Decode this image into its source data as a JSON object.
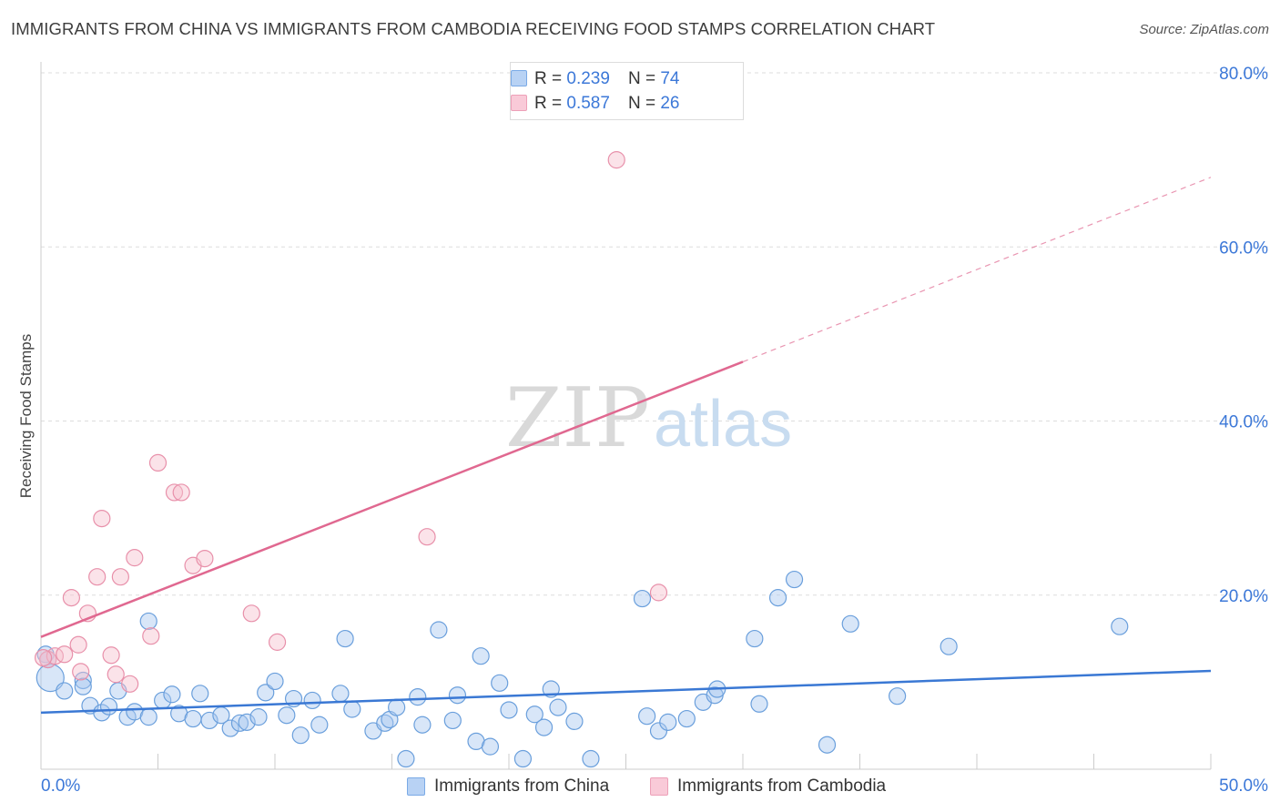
{
  "header": {
    "title": "IMMIGRANTS FROM CHINA VS IMMIGRANTS FROM CAMBODIA RECEIVING FOOD STAMPS CORRELATION CHART",
    "source": "Source: ZipAtlas.com"
  },
  "watermark": {
    "zip": "ZIP",
    "atlas": "atlas"
  },
  "legend_top": {
    "rows": [
      {
        "r_label": "R =",
        "r_value": "0.239",
        "n_label": "N =",
        "n_value": "74"
      },
      {
        "r_label": "R =",
        "r_value": "0.587",
        "n_label": "N =",
        "n_value": "26"
      }
    ]
  },
  "legend_bottom": {
    "items": [
      {
        "label": "Immigrants from China"
      },
      {
        "label": "Immigrants from Cambodia"
      }
    ]
  },
  "colors": {
    "china_fill": "#a8c8f0",
    "china_stroke": "#6a9fdc",
    "china_line": "#3a78d4",
    "cambodia_fill": "#f7c0cf",
    "cambodia_stroke": "#e890aa",
    "cambodia_line": "#e06890",
    "axis_label": "#3c78d8",
    "grid": "#dddddd"
  },
  "chart_data": {
    "type": "scatter",
    "title": "IMMIGRANTS FROM CHINA VS IMMIGRANTS FROM CAMBODIA RECEIVING FOOD STAMPS CORRELATION CHART",
    "xlabel": "",
    "ylabel": "Receiving Food Stamps",
    "xlim": [
      0,
      50
    ],
    "ylim": [
      0,
      80
    ],
    "x_tick_labels": [
      {
        "value": 0,
        "label": "0.0%"
      },
      {
        "value": 50,
        "label": "50.0%"
      }
    ],
    "y_tick_labels": [
      {
        "value": 20,
        "label": "20.0%"
      },
      {
        "value": 40,
        "label": "40.0%"
      },
      {
        "value": 60,
        "label": "60.0%"
      },
      {
        "value": 80,
        "label": "80.0%"
      }
    ],
    "grid": true,
    "legend_position": "top-center",
    "series": [
      {
        "name": "Immigrants from China",
        "r": 0.239,
        "n": 74,
        "trend": {
          "x": [
            0,
            50
          ],
          "y": [
            6.5,
            11.3
          ],
          "extrapolated": false
        },
        "points": [
          [
            0.4,
            10.5
          ],
          [
            1.0,
            9.0
          ],
          [
            1.8,
            10.2
          ],
          [
            1.8,
            9.5
          ],
          [
            2.1,
            7.3
          ],
          [
            2.6,
            6.5
          ],
          [
            2.9,
            7.2
          ],
          [
            3.3,
            9.0
          ],
          [
            3.7,
            6.0
          ],
          [
            4.0,
            6.6
          ],
          [
            4.6,
            6.0
          ],
          [
            4.6,
            17.0
          ],
          [
            5.2,
            7.9
          ],
          [
            5.6,
            8.6
          ],
          [
            5.9,
            6.4
          ],
          [
            6.5,
            5.8
          ],
          [
            6.8,
            8.7
          ],
          [
            7.2,
            5.6
          ],
          [
            7.7,
            6.2
          ],
          [
            8.1,
            4.7
          ],
          [
            8.5,
            5.3
          ],
          [
            8.8,
            5.4
          ],
          [
            9.3,
            6.0
          ],
          [
            9.6,
            8.8
          ],
          [
            10.0,
            10.1
          ],
          [
            10.5,
            6.2
          ],
          [
            10.8,
            8.1
          ],
          [
            11.1,
            3.9
          ],
          [
            11.6,
            7.9
          ],
          [
            11.9,
            5.1
          ],
          [
            12.8,
            8.7
          ],
          [
            13.0,
            15.0
          ],
          [
            13.3,
            6.9
          ],
          [
            14.2,
            4.4
          ],
          [
            14.7,
            5.3
          ],
          [
            14.9,
            5.7
          ],
          [
            15.2,
            7.1
          ],
          [
            15.6,
            1.2
          ],
          [
            16.1,
            8.3
          ],
          [
            16.3,
            5.1
          ],
          [
            17.0,
            16.0
          ],
          [
            17.6,
            5.6
          ],
          [
            17.8,
            8.5
          ],
          [
            18.6,
            3.2
          ],
          [
            18.8,
            13.0
          ],
          [
            19.2,
            2.6
          ],
          [
            19.6,
            9.9
          ],
          [
            20.0,
            6.8
          ],
          [
            20.6,
            1.2
          ],
          [
            21.1,
            6.3
          ],
          [
            21.5,
            4.8
          ],
          [
            21.8,
            9.2
          ],
          [
            22.1,
            7.1
          ],
          [
            22.8,
            5.5
          ],
          [
            23.5,
            1.2
          ],
          [
            25.7,
            19.6
          ],
          [
            25.9,
            6.1
          ],
          [
            26.4,
            4.4
          ],
          [
            26.8,
            5.4
          ],
          [
            27.6,
            5.8
          ],
          [
            28.3,
            7.7
          ],
          [
            28.8,
            8.5
          ],
          [
            28.9,
            9.2
          ],
          [
            30.5,
            15.0
          ],
          [
            30.7,
            7.5
          ],
          [
            31.5,
            19.7
          ],
          [
            32.2,
            21.8
          ],
          [
            33.6,
            2.8
          ],
          [
            34.6,
            16.7
          ],
          [
            36.6,
            8.4
          ],
          [
            38.8,
            14.1
          ],
          [
            46.1,
            16.4
          ],
          [
            0.2,
            13.2
          ],
          [
            0.3,
            12.6
          ]
        ]
      },
      {
        "name": "Immigrants from Cambodia",
        "r": 0.587,
        "n": 26,
        "trend": {
          "x": [
            0,
            30
          ],
          "y": [
            15.2,
            46.8
          ],
          "dashed_to": [
            50,
            68.0
          ]
        },
        "points": [
          [
            0.3,
            12.6
          ],
          [
            0.6,
            13.0
          ],
          [
            1.0,
            13.2
          ],
          [
            1.3,
            19.7
          ],
          [
            1.6,
            14.3
          ],
          [
            1.7,
            11.2
          ],
          [
            2.0,
            17.9
          ],
          [
            2.4,
            22.1
          ],
          [
            2.6,
            28.8
          ],
          [
            3.0,
            13.1
          ],
          [
            3.2,
            10.9
          ],
          [
            3.4,
            22.1
          ],
          [
            3.8,
            9.8
          ],
          [
            4.0,
            24.3
          ],
          [
            4.7,
            15.3
          ],
          [
            5.0,
            35.2
          ],
          [
            5.7,
            31.8
          ],
          [
            6.0,
            31.8
          ],
          [
            6.5,
            23.4
          ],
          [
            7.0,
            24.2
          ],
          [
            9.0,
            17.9
          ],
          [
            10.1,
            14.6
          ],
          [
            16.5,
            26.7
          ],
          [
            24.6,
            70.0
          ],
          [
            26.4,
            20.3
          ],
          [
            0.1,
            12.8
          ]
        ]
      }
    ]
  },
  "axis": {
    "ylabel": "Receiving Food Stamps",
    "x_left_label": "0.0%",
    "x_right_label": "50.0%"
  }
}
